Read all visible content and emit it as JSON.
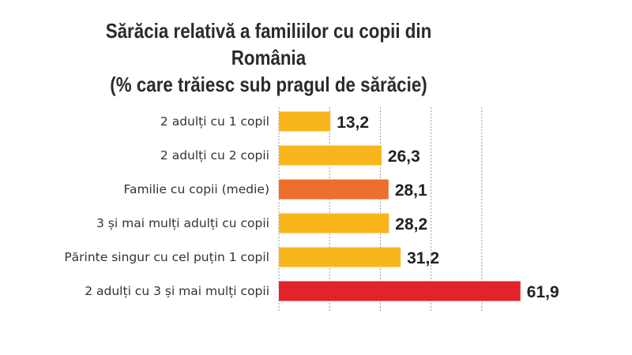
{
  "chart_data": {
    "type": "bar",
    "orientation": "horizontal",
    "title": "Sărăcia relativă a familiilor cu copii din România",
    "subtitle": "(% care trăiesc sub pragul de sărăcie)",
    "categories": [
      "2 adulți cu 1 copil",
      "2 adulți cu 2 copii",
      "Familie cu copii (medie)",
      "3 și mai mulți adulți cu copii",
      "Părinte singur cu cel puțin 1 copil",
      "2 adulți cu 3 și mai mulți copii"
    ],
    "values": [
      13.2,
      26.3,
      28.1,
      28.2,
      31.2,
      61.9
    ],
    "value_labels": [
      "13,2",
      "26,3",
      "28,1",
      "28,2",
      "31,2",
      "61,9"
    ],
    "colors": [
      "#F9B51C",
      "#F9B51C",
      "#EE6E2B",
      "#F9B51C",
      "#F9B51C",
      "#E3232B"
    ],
    "xlim": [
      0,
      70
    ],
    "grid": true,
    "gridlines": [
      0,
      13,
      26,
      39,
      52
    ],
    "legend": "none"
  }
}
